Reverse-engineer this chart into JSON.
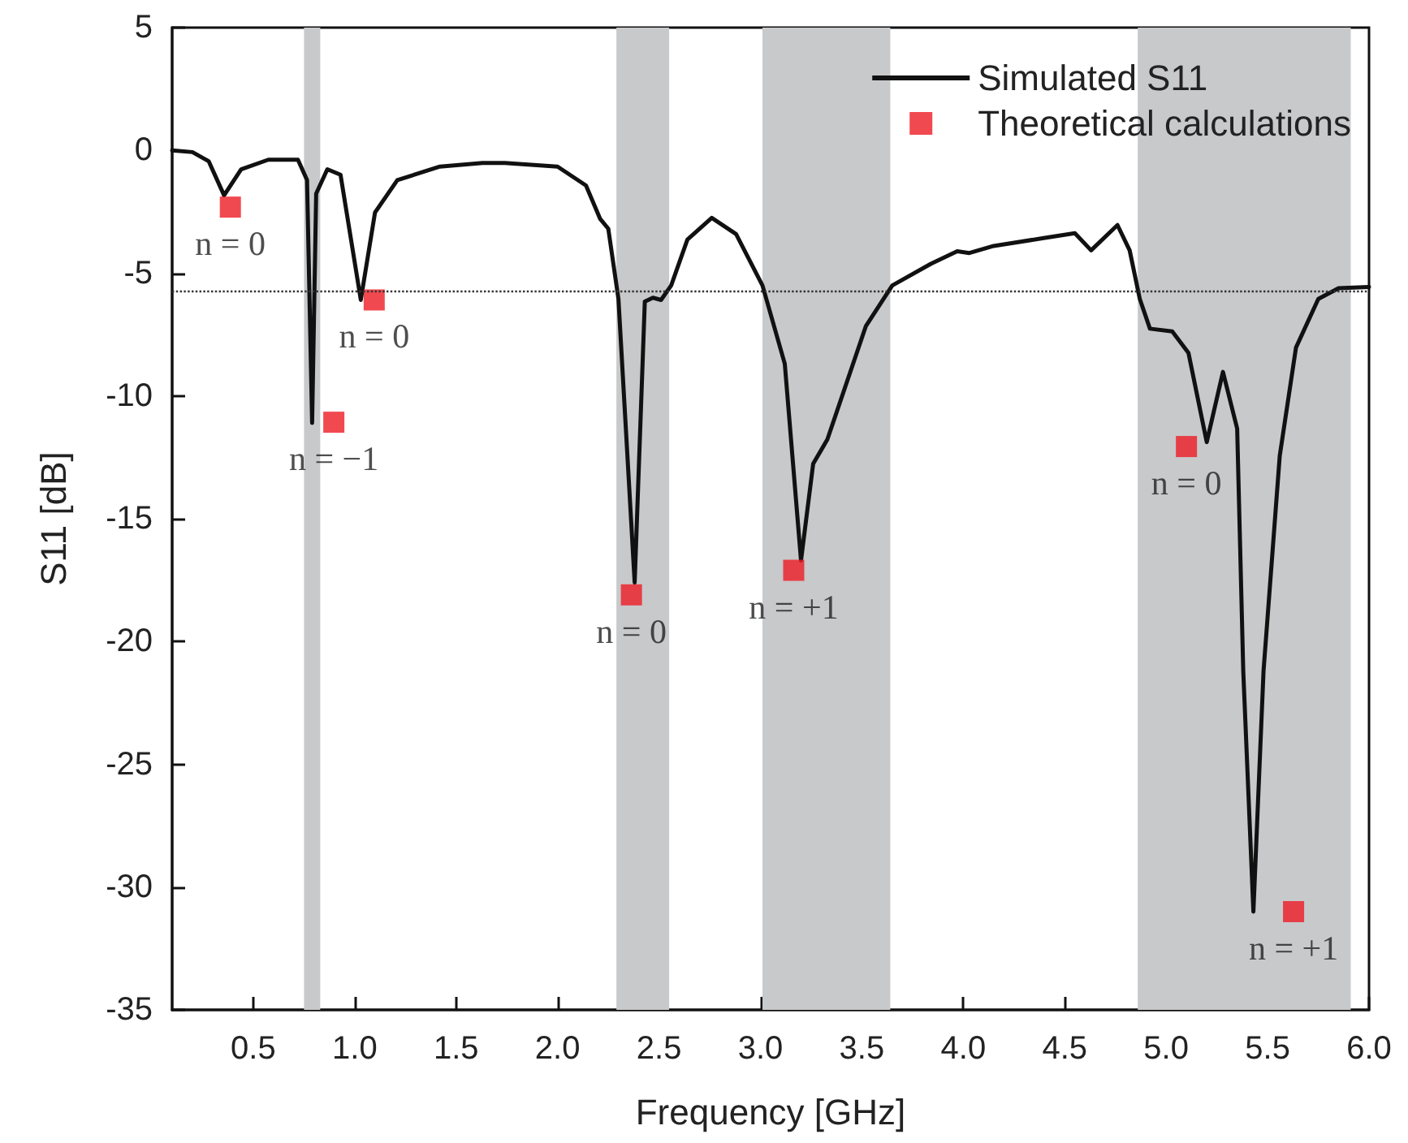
{
  "chart_data": {
    "type": "line",
    "xlabel": "Frequency [GHz]",
    "ylabel": "S11 [dB]",
    "xlim": [
      0.1,
      6.0
    ],
    "xticks": [
      {
        "value": 0.5,
        "label": "0.5"
      },
      {
        "value": 1.0,
        "label": "1.0"
      },
      {
        "value": 1.5,
        "label": "1.5"
      },
      {
        "value": 2.0,
        "label": "2.0"
      },
      {
        "value": 2.5,
        "label": "2.5"
      },
      {
        "value": 3.0,
        "label": "3.0"
      },
      {
        "value": 3.5,
        "label": "3.5"
      },
      {
        "value": 4.0,
        "label": "4.0"
      },
      {
        "value": 4.5,
        "label": "4.5"
      },
      {
        "value": 5.0,
        "label": "5.0"
      },
      {
        "value": 5.5,
        "label": "5.5"
      },
      {
        "value": 6.0,
        "label": "6.0"
      }
    ],
    "ylim": [
      -35,
      5
    ],
    "yticks": [
      -35,
      -30,
      -25,
      -20,
      -15,
      -10,
      -5,
      0,
      5
    ],
    "grid": false,
    "legend": "top right",
    "series": [
      {
        "name": "Simulated S11",
        "color": "#111111",
        "marker": "none",
        "line_style": "solid",
        "x": [
          0.1,
          0.2,
          0.28,
          0.356,
          0.44,
          0.574,
          0.72,
          0.765,
          0.79,
          0.81,
          0.865,
          0.93,
          1.03,
          1.1,
          1.21,
          1.42,
          1.63,
          1.74,
          2.0,
          2.14,
          2.21,
          2.25,
          2.3,
          2.38,
          2.43,
          2.47,
          2.51,
          2.56,
          2.64,
          2.76,
          2.88,
          3.01,
          3.12,
          3.2,
          3.26,
          3.33,
          3.52,
          3.65,
          3.84,
          3.97,
          4.03,
          4.15,
          4.39,
          4.55,
          4.63,
          4.76,
          4.82,
          4.87,
          4.92,
          5.03,
          5.11,
          5.2,
          5.28,
          5.35,
          5.38,
          5.43,
          5.48,
          5.56,
          5.64,
          5.75,
          5.85,
          6.0
        ],
        "values": [
          0,
          -0.07,
          -0.44,
          -1.83,
          -0.77,
          -0.38,
          -0.38,
          -1.21,
          -11.1,
          -1.76,
          -0.77,
          -0.99,
          -6.09,
          -2.53,
          -1.21,
          -0.66,
          -0.51,
          -0.51,
          -0.66,
          -1.43,
          -2.79,
          -3.19,
          -6.05,
          -17.6,
          -6.16,
          -6.0,
          -6.09,
          -5.5,
          -3.63,
          -2.75,
          -3.41,
          -5.5,
          -8.69,
          -16.7,
          -12.76,
          -11.77,
          -7.15,
          -5.5,
          -4.62,
          -4.11,
          -4.18,
          -3.89,
          -3.58,
          -3.37,
          -4.07,
          -3.04,
          -4.07,
          -6.05,
          -7.26,
          -7.37,
          -8.25,
          -11.88,
          -9.02,
          -11.33,
          -21.2,
          -31.0,
          -21.2,
          -12.43,
          -8.03,
          -6.05,
          -5.61,
          -5.56
        ]
      },
      {
        "name": "Theoretical calculations",
        "type": "scatter",
        "color": "#ed1c24",
        "marker": "square",
        "x": [
          0.387,
          0.897,
          1.096,
          2.364,
          3.164,
          5.1,
          5.628
        ],
        "values": [
          -2.31,
          -11.07,
          -6.09,
          -18.1,
          -17.1,
          -12.06,
          -31.0
        ]
      }
    ],
    "ref_lines": [
      {
        "axis": "y",
        "value": -5.7,
        "label": null,
        "color": "#333333",
        "line_style": "dotted"
      }
    ],
    "bands": [
      {
        "axis": "x",
        "from": 0.75,
        "to": 0.83,
        "label": null,
        "color": "#c8c9cb"
      },
      {
        "axis": "x",
        "from": 2.29,
        "to": 2.55,
        "label": null,
        "color": "#c8c9cb"
      },
      {
        "axis": "x",
        "from": 3.01,
        "to": 3.64,
        "label": null,
        "color": "#c8c9cb"
      },
      {
        "axis": "x",
        "from": 4.86,
        "to": 5.91,
        "label": null,
        "color": "#c8c9cb"
      }
    ],
    "annotations": [
      {
        "text": "n = 0",
        "x": 0.387,
        "y": -2.31
      },
      {
        "text": "n = −1",
        "x": 0.897,
        "y": -11.07
      },
      {
        "text": "n = 0",
        "x": 1.096,
        "y": -6.09
      },
      {
        "text": "n = 0",
        "x": 2.364,
        "y": -18.1
      },
      {
        "text": "n = +1",
        "x": 3.164,
        "y": -17.1
      },
      {
        "text": "n = 0",
        "x": 5.1,
        "y": -12.06
      },
      {
        "text": "n = +1",
        "x": 5.628,
        "y": -31.0
      }
    ]
  }
}
